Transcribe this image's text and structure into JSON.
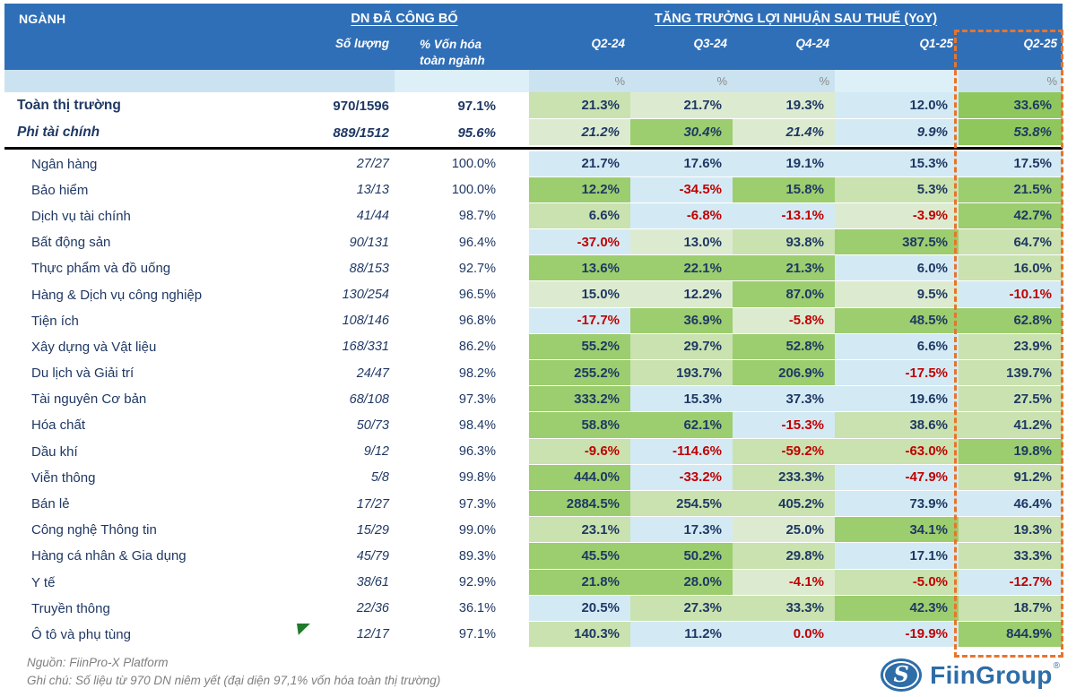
{
  "colors": {
    "header_blue": "#2F6FB7",
    "cell_blue": "#D3EAF4",
    "green_pale": "#DCEBD0",
    "green_light": "#C9E2AF",
    "green_mid": "#9CCD6F",
    "green_strong": "#8FC75C",
    "negative_red": "#C00000",
    "navy_text": "#1F3864",
    "highlight_dashed_orange": "#E8742C",
    "logo_blue": "#2D6DA8"
  },
  "chart_data": {
    "type": "table",
    "title": "TĂNG TRƯỞNG LỢI NHUẬN SAU THUẾ (YoY)",
    "col_nganh": "NGÀNH",
    "group_published": "DN ĐÃ CÔNG BỐ",
    "col_count": "Số lượng",
    "col_cap_line1": "% Vốn hóa",
    "col_cap_line2": "toàn ngành",
    "quarters": [
      "Q2-24",
      "Q3-24",
      "Q4-24",
      "Q1-25",
      "Q2-25"
    ],
    "pct_symbol": "%",
    "highlight_quarter": "Q2-25",
    "summary_rows": [
      {
        "name": "Toàn thị trường",
        "count": "970/1596",
        "cap": "97.1%",
        "values": [
          "21.3%",
          "21.7%",
          "19.3%",
          "12.0%",
          "33.6%"
        ],
        "colors": [
          "g2",
          "g1",
          "g1",
          "b",
          "g4"
        ],
        "red": [
          0,
          0,
          0,
          0,
          0
        ],
        "style": "bold"
      },
      {
        "name": "Phi tài chính",
        "count": "889/1512",
        "cap": "95.6%",
        "values": [
          "21.2%",
          "30.4%",
          "21.4%",
          "9.9%",
          "53.8%"
        ],
        "colors": [
          "g1",
          "g3",
          "g1",
          "b",
          "g4"
        ],
        "red": [
          0,
          0,
          0,
          0,
          0
        ],
        "style": "bold-italic"
      }
    ],
    "rows": [
      {
        "name": "Ngân hàng",
        "count": "27/27",
        "cap": "100.0%",
        "values": [
          "21.7%",
          "17.6%",
          "19.1%",
          "15.3%",
          "17.5%"
        ],
        "colors": [
          "b",
          "b",
          "b",
          "b",
          "b"
        ],
        "red": [
          0,
          0,
          0,
          0,
          0
        ]
      },
      {
        "name": "Bảo hiểm",
        "count": "13/13",
        "cap": "100.0%",
        "values": [
          "12.2%",
          "-34.5%",
          "15.8%",
          "5.3%",
          "21.5%"
        ],
        "colors": [
          "g3",
          "b",
          "g3",
          "g2",
          "g3"
        ],
        "red": [
          0,
          1,
          0,
          0,
          0
        ]
      },
      {
        "name": "Dịch vụ tài chính",
        "count": "41/44",
        "cap": "98.7%",
        "values": [
          "6.6%",
          "-6.8%",
          "-13.1%",
          "-3.9%",
          "42.7%"
        ],
        "colors": [
          "g2",
          "b",
          "b",
          "g1",
          "g3"
        ],
        "red": [
          0,
          1,
          1,
          1,
          0
        ]
      },
      {
        "name": "Bất động sản",
        "count": "90/131",
        "cap": "96.4%",
        "values": [
          "-37.0%",
          "13.0%",
          "93.8%",
          "387.5%",
          "64.7%"
        ],
        "colors": [
          "b",
          "g1",
          "g2",
          "g3",
          "g2"
        ],
        "red": [
          1,
          0,
          0,
          0,
          0
        ]
      },
      {
        "name": "Thực phẩm và đồ uống",
        "count": "88/153",
        "cap": "92.7%",
        "values": [
          "13.6%",
          "22.1%",
          "21.3%",
          "6.0%",
          "16.0%"
        ],
        "colors": [
          "g3",
          "g3",
          "g3",
          "b",
          "g2"
        ],
        "red": [
          0,
          0,
          0,
          0,
          0
        ]
      },
      {
        "name": "Hàng & Dịch vụ công nghiệp",
        "count": "130/254",
        "cap": "96.5%",
        "values": [
          "15.0%",
          "12.2%",
          "87.0%",
          "9.5%",
          "-10.1%"
        ],
        "colors": [
          "g1",
          "g1",
          "g3",
          "g1",
          "b"
        ],
        "red": [
          0,
          0,
          0,
          0,
          1
        ]
      },
      {
        "name": "Tiện ích",
        "count": "108/146",
        "cap": "96.8%",
        "values": [
          "-17.7%",
          "36.9%",
          "-5.8%",
          "48.5%",
          "62.8%"
        ],
        "colors": [
          "b",
          "g3",
          "g1",
          "g3",
          "g3"
        ],
        "red": [
          1,
          0,
          1,
          0,
          0
        ]
      },
      {
        "name": "Xây dựng và Vật liệu",
        "count": "168/331",
        "cap": "86.2%",
        "values": [
          "55.2%",
          "29.7%",
          "52.8%",
          "6.6%",
          "23.9%"
        ],
        "colors": [
          "g3",
          "g2",
          "g3",
          "b",
          "g2"
        ],
        "red": [
          0,
          0,
          0,
          0,
          0
        ]
      },
      {
        "name": "Du lịch và Giải trí",
        "count": "24/47",
        "cap": "98.2%",
        "values": [
          "255.2%",
          "193.7%",
          "206.9%",
          "-17.5%",
          "139.7%"
        ],
        "colors": [
          "g3",
          "g2",
          "g3",
          "b",
          "g2"
        ],
        "red": [
          0,
          0,
          0,
          1,
          0
        ]
      },
      {
        "name": "Tài nguyên Cơ bản",
        "count": "68/108",
        "cap": "97.3%",
        "values": [
          "333.2%",
          "15.3%",
          "37.3%",
          "19.6%",
          "27.5%"
        ],
        "colors": [
          "g3",
          "b",
          "b",
          "b",
          "g2"
        ],
        "red": [
          0,
          0,
          0,
          0,
          0
        ]
      },
      {
        "name": "Hóa chất",
        "count": "50/73",
        "cap": "98.4%",
        "values": [
          "58.8%",
          "62.1%",
          "-15.3%",
          "38.6%",
          "41.2%"
        ],
        "colors": [
          "g3",
          "g3",
          "b",
          "g2",
          "g2"
        ],
        "red": [
          0,
          0,
          1,
          0,
          0
        ]
      },
      {
        "name": "Dầu khí",
        "count": "9/12",
        "cap": "96.3%",
        "values": [
          "-9.6%",
          "-114.6%",
          "-59.2%",
          "-63.0%",
          "19.8%"
        ],
        "colors": [
          "g2",
          "b",
          "g2",
          "g2",
          "g3"
        ],
        "red": [
          1,
          1,
          1,
          1,
          0
        ]
      },
      {
        "name": "Viễn thông",
        "count": "5/8",
        "cap": "99.8%",
        "values": [
          "444.0%",
          "-33.2%",
          "233.3%",
          "-47.9%",
          "91.2%"
        ],
        "colors": [
          "g3",
          "b",
          "g2",
          "b",
          "g2"
        ],
        "red": [
          0,
          1,
          0,
          1,
          0
        ]
      },
      {
        "name": "Bán lẻ",
        "count": "17/27",
        "cap": "97.3%",
        "values": [
          "2884.5%",
          "254.5%",
          "405.2%",
          "73.9%",
          "46.4%"
        ],
        "colors": [
          "g3",
          "g2",
          "g2",
          "b",
          "b"
        ],
        "red": [
          0,
          0,
          0,
          0,
          0
        ]
      },
      {
        "name": "Công nghệ Thông tin",
        "count": "15/29",
        "cap": "99.0%",
        "values": [
          "23.1%",
          "17.3%",
          "25.0%",
          "34.1%",
          "19.3%"
        ],
        "colors": [
          "g2",
          "b",
          "g1",
          "g3",
          "g2"
        ],
        "red": [
          0,
          0,
          0,
          0,
          0
        ]
      },
      {
        "name": "Hàng cá nhân & Gia dụng",
        "count": "45/79",
        "cap": "89.3%",
        "values": [
          "45.5%",
          "50.2%",
          "29.8%",
          "17.1%",
          "33.3%"
        ],
        "colors": [
          "g3",
          "g3",
          "g2",
          "b",
          "g2"
        ],
        "red": [
          0,
          0,
          0,
          0,
          0
        ]
      },
      {
        "name": "Y tế",
        "count": "38/61",
        "cap": "92.9%",
        "values": [
          "21.8%",
          "28.0%",
          "-4.1%",
          "-5.0%",
          "-12.7%"
        ],
        "colors": [
          "g3",
          "g3",
          "g1",
          "g2",
          "b"
        ],
        "red": [
          0,
          0,
          1,
          1,
          1
        ]
      },
      {
        "name": "Truyền thông",
        "count": "22/36",
        "cap": "36.1%",
        "values": [
          "20.5%",
          "27.3%",
          "33.3%",
          "42.3%",
          "18.7%"
        ],
        "colors": [
          "b",
          "g2",
          "g2",
          "g3",
          "g2"
        ],
        "red": [
          0,
          0,
          0,
          0,
          0
        ]
      },
      {
        "name": "Ô tô và phụ tùng",
        "count": "12/17",
        "cap": "97.1%",
        "values": [
          "140.3%",
          "11.2%",
          "0.0%",
          "-19.9%",
          "844.9%"
        ],
        "colors": [
          "g2",
          "b",
          "b",
          "b",
          "g3"
        ],
        "red": [
          0,
          0,
          1,
          1,
          0
        ],
        "flag": true
      }
    ]
  },
  "footer": {
    "source": "Nguồn: FiinPro-X Platform",
    "note": "Ghi chú: Số liệu từ 970 DN niêm yết (đại diện 97,1% vốn hóa toàn thị trường)"
  },
  "logo": {
    "name": "FiinGroup",
    "registered": "®"
  }
}
